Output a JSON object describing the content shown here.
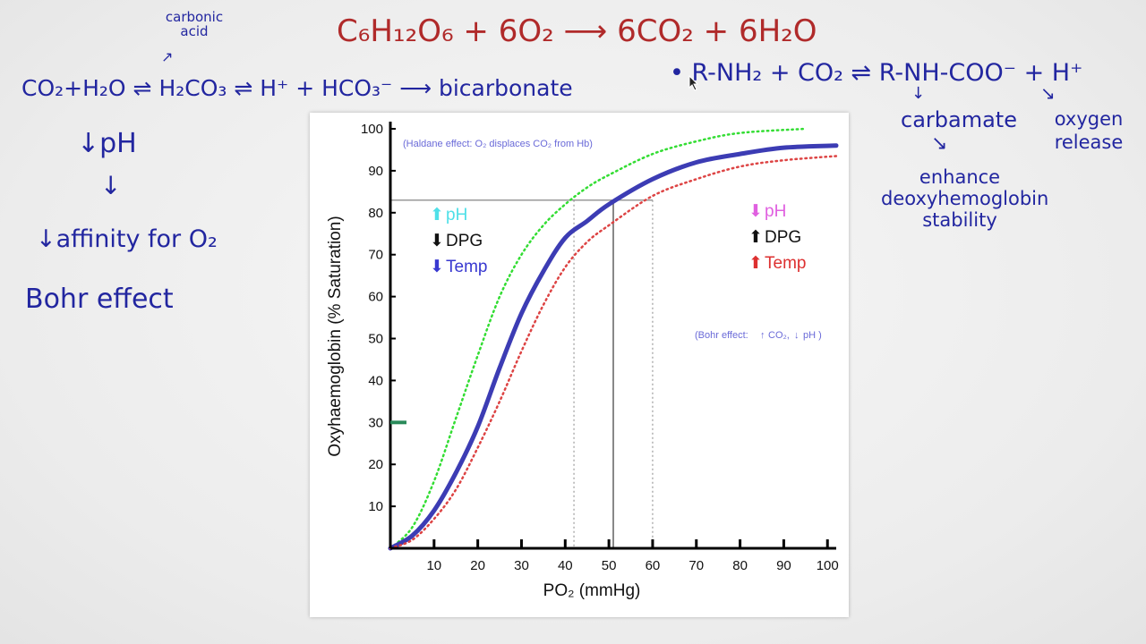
{
  "annotations": {
    "equation_top": "C₆H₁₂O₆ + 6O₂ ⟶ 6CO₂ + 6H₂O",
    "carbonic_acid_label": "carbonic acid",
    "left_equation": "CO₂+H₂O ⇌ H₂CO₃ ⇌ H⁺ + HCO₃⁻ ⟶ bicarbonate",
    "ph_down": "↓pH",
    "affinity": "↓affinity for O₂",
    "bohr": "Bohr effect",
    "right_equation": "• R-NH₂ + CO₂ ⇌ R-NH-COO⁻ + H⁺",
    "carbamate": "carbamate",
    "enhance": "enhance deoxyhemoglobin stability",
    "oxygen_release": "oxygen release"
  },
  "chart_data": {
    "type": "line",
    "xlabel": "PO₂ (mmHg)",
    "ylabel": "Oxyhaemoglobin (% Saturation)",
    "x_ticks": [
      "10",
      "20",
      "30",
      "40",
      "50",
      "60",
      "70",
      "80",
      "90",
      "100"
    ],
    "y_ticks": [
      "10",
      "20",
      "30",
      "40",
      "50",
      "60",
      "70",
      "80",
      "90",
      "100"
    ],
    "xlim": [
      0,
      102
    ],
    "ylim": [
      0,
      100
    ],
    "series": [
      {
        "color": "#33dd33",
        "style": "dotted",
        "x": [
          0,
          5,
          10,
          15,
          20,
          25,
          30,
          35,
          40,
          45,
          50,
          60,
          70,
          80,
          95
        ],
        "y": [
          0,
          5,
          16,
          31,
          46,
          60,
          70,
          77,
          82,
          86,
          89,
          94,
          97,
          99,
          100
        ]
      },
      {
        "color": "#3c3cb4",
        "style": "solid",
        "x": [
          0,
          5,
          10,
          15,
          20,
          25,
          30,
          35,
          40,
          45,
          50,
          60,
          70,
          80,
          90,
          102
        ],
        "y": [
          0,
          3,
          9,
          18,
          29,
          43,
          56,
          66,
          74,
          78,
          82,
          88,
          92,
          94,
          95.5,
          96
        ]
      },
      {
        "color": "#dd4444",
        "style": "dotted",
        "x": [
          0,
          5,
          10,
          15,
          20,
          25,
          30,
          35,
          40,
          45,
          50,
          60,
          70,
          80,
          90,
          102
        ],
        "y": [
          0,
          2,
          7,
          14,
          24,
          35,
          47,
          58,
          67,
          73,
          77,
          84,
          88,
          91,
          92.5,
          93.5
        ]
      }
    ],
    "reference_lines": {
      "saturation_y": 83,
      "po2_x": [
        42,
        51,
        60
      ]
    },
    "notes": {
      "haldane": "(Haldane effect: O₂ displaces CO₂ from Hb)",
      "bohr": "(Bohr effect:",
      "bohr_co2": "CO₂,",
      "bohr_ph": "pH )"
    },
    "left_legend": {
      "ph": "pH",
      "ph_color": "#4fe0e8",
      "dpg": "DPG",
      "dpg_color": "#111111",
      "temp": "Temp",
      "temp_color": "#3838d0"
    },
    "right_legend": {
      "ph": "pH",
      "ph_color": "#e060e0",
      "dpg": "DPG",
      "dpg_color": "#111111",
      "temp": "Temp",
      "temp_color": "#dd3030"
    },
    "marker_y": 30,
    "marker_color": "#2a8a5a"
  }
}
